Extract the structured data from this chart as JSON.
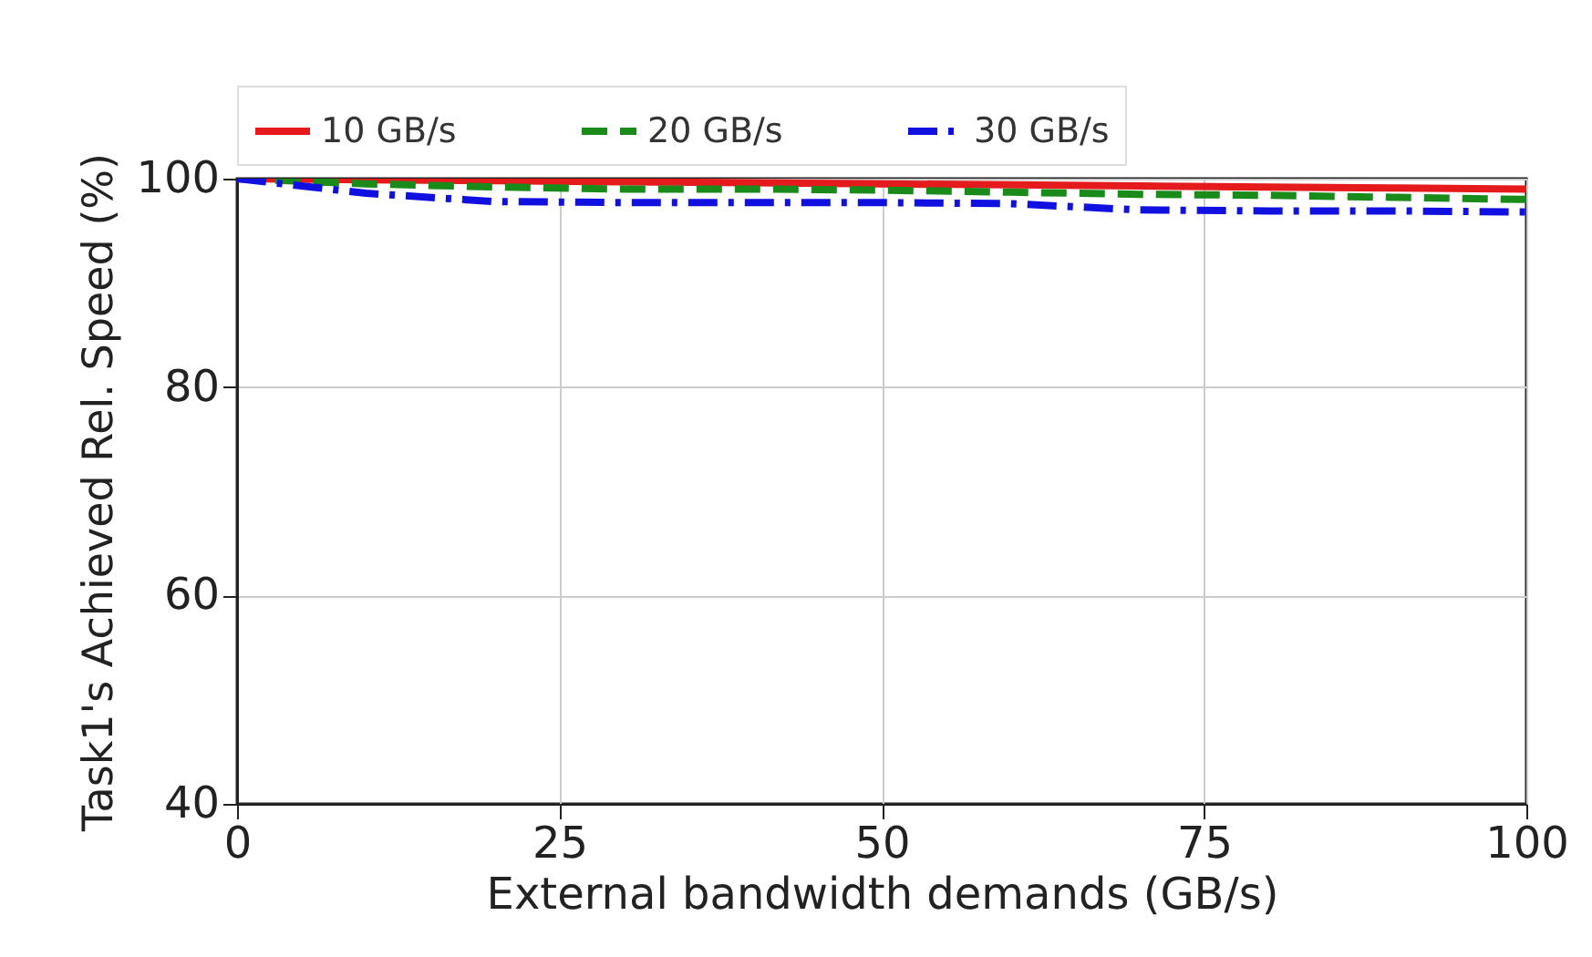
{
  "chart_data": {
    "type": "line",
    "xlabel": "External bandwidth demands (GB/s)",
    "ylabel": "Task1's Achieved Rel. Speed (%)",
    "x": [
      0,
      10,
      20,
      30,
      40,
      50,
      60,
      70,
      80,
      90,
      100
    ],
    "series": [
      {
        "name": "10 GB/s",
        "color": "#e41a1c",
        "line_style": "solid",
        "values": [
          100,
          99.9,
          99.8,
          99.7,
          99.6,
          99.5,
          99.4,
          99.3,
          99.2,
          99.1,
          99.0
        ]
      },
      {
        "name": "20 GB/s",
        "color": "#1a8a1a",
        "line_style": "dashed",
        "values": [
          100,
          99.5,
          99.2,
          99.0,
          99.0,
          98.9,
          98.7,
          98.5,
          98.4,
          98.2,
          98.0
        ]
      },
      {
        "name": "30 GB/s",
        "color": "#1010e0",
        "line_style": "dashdot",
        "values": [
          100,
          98.6,
          97.8,
          97.7,
          97.7,
          97.7,
          97.6,
          97.0,
          96.9,
          96.9,
          96.8
        ]
      }
    ],
    "xlim": [
      0,
      100
    ],
    "xticks": [
      0,
      25,
      50,
      75,
      100
    ],
    "ylim": [
      40,
      100
    ],
    "yticks": [
      40,
      60,
      80,
      100
    ],
    "grid": true,
    "legend": "top"
  }
}
